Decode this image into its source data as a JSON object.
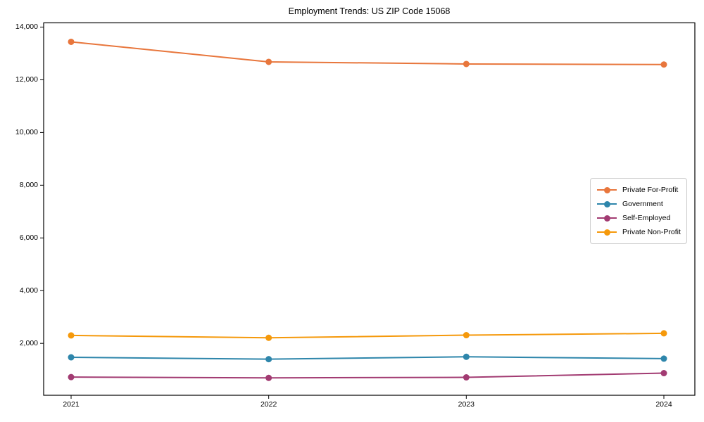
{
  "chart_data": {
    "type": "line",
    "title": "Employment Trends: US ZIP Code 15068",
    "xlabel": "",
    "ylabel": "",
    "categories": [
      "2021",
      "2022",
      "2023",
      "2024"
    ],
    "series": [
      {
        "name": "Private For-Profit",
        "color": "#E8763C",
        "values": [
          13440,
          12680,
          12600,
          12580
        ]
      },
      {
        "name": "Government",
        "color": "#2E86AB",
        "values": [
          1470,
          1400,
          1490,
          1420
        ]
      },
      {
        "name": "Self-Employed",
        "color": "#A23B72",
        "values": [
          720,
          690,
          710,
          870
        ]
      },
      {
        "name": "Private Non-Profit",
        "color": "#F5990B",
        "values": [
          2300,
          2210,
          2310,
          2380
        ]
      }
    ],
    "yticks": [
      2000,
      4000,
      6000,
      8000,
      10000,
      12000,
      14000
    ],
    "ytick_labels": [
      "2,000",
      "4,000",
      "6,000",
      "8,000",
      "10,000",
      "12,000",
      "14,000"
    ],
    "ylim": [
      30,
      14160
    ],
    "grid": false,
    "legend_position": "center right",
    "axis_color": "#000000"
  }
}
